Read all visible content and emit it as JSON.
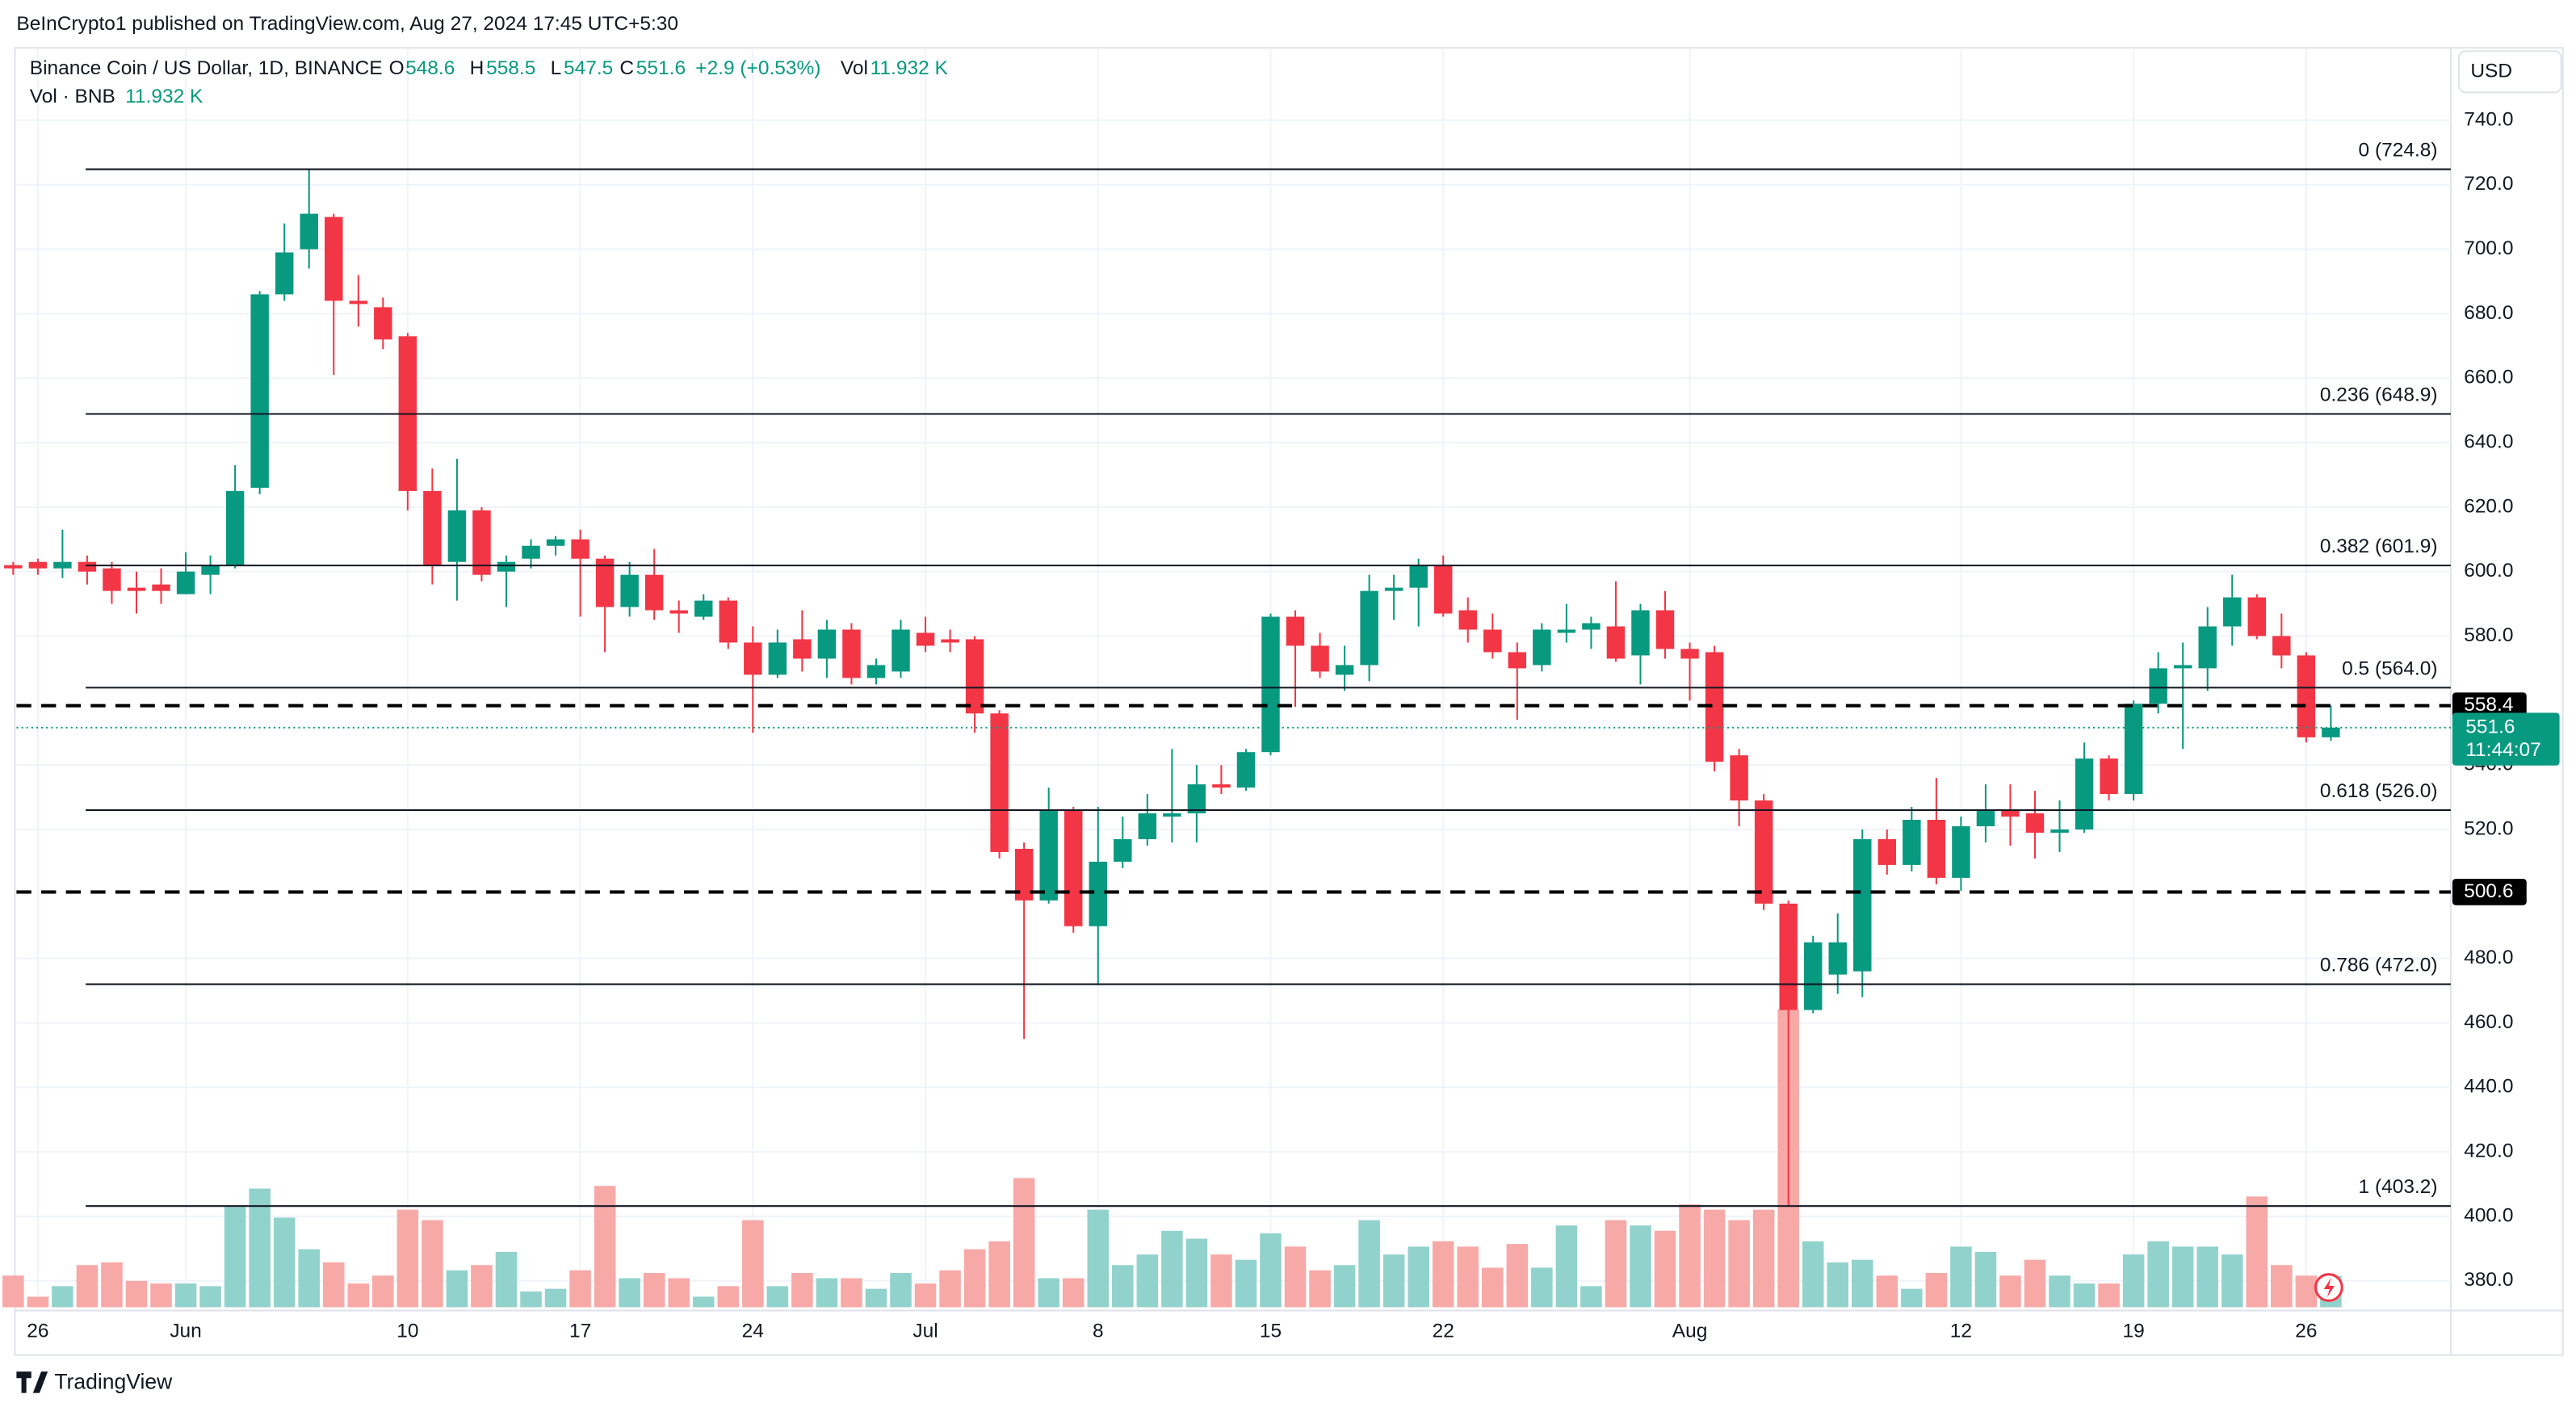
{
  "header": {
    "published": "BeInCrypto1 published on TradingView.com, Aug 27, 2024 17:45 UTC+5:30"
  },
  "footer": {
    "brand": "TradingView"
  },
  "chart_data": {
    "type": "candlestick",
    "currency": "USD",
    "legend": {
      "symbol": "Binance Coin / US Dollar, 1D, BINANCE",
      "keys": [
        "O",
        "H",
        "L",
        "C"
      ],
      "change": "+2.9 (+0.53%)",
      "vol_key": "Vol",
      "vol_title": "Vol · BNB",
      "volume_label": "11.932 K"
    },
    "categories": [
      "May 25",
      "May 26",
      "May 27",
      "May 28",
      "May 29",
      "May 30",
      "May 31",
      "Jun 1",
      "Jun 2",
      "Jun 3",
      "Jun 4",
      "Jun 5",
      "Jun 6",
      "Jun 7",
      "Jun 8",
      "Jun 9",
      "Jun 10",
      "Jun 11",
      "Jun 12",
      "Jun 13",
      "Jun 14",
      "Jun 15",
      "Jun 16",
      "Jun 17",
      "Jun 18",
      "Jun 19",
      "Jun 20",
      "Jun 21",
      "Jun 22",
      "Jun 23",
      "Jun 24",
      "Jun 25",
      "Jun 26",
      "Jun 27",
      "Jun 28",
      "Jun 29",
      "Jun 30",
      "Jul 1",
      "Jul 2",
      "Jul 3",
      "Jul 4",
      "Jul 5",
      "Jul 6",
      "Jul 7",
      "Jul 8",
      "Jul 9",
      "Jul 10",
      "Jul 11",
      "Jul 12",
      "Jul 13",
      "Jul 14",
      "Jul 15",
      "Jul 16",
      "Jul 17",
      "Jul 18",
      "Jul 19",
      "Jul 20",
      "Jul 21",
      "Jul 22",
      "Jul 23",
      "Jul 24",
      "Jul 25",
      "Jul 26",
      "Jul 27",
      "Jul 28",
      "Jul 29",
      "Jul 30",
      "Jul 31",
      "Aug 1",
      "Aug 2",
      "Aug 3",
      "Aug 4",
      "Aug 5",
      "Aug 6",
      "Aug 7",
      "Aug 8",
      "Aug 9",
      "Aug 10",
      "Aug 11",
      "Aug 12",
      "Aug 13",
      "Aug 14",
      "Aug 15",
      "Aug 16",
      "Aug 17",
      "Aug 18",
      "Aug 19",
      "Aug 20",
      "Aug 21",
      "Aug 22",
      "Aug 23",
      "Aug 24",
      "Aug 25",
      "Aug 26",
      "Aug 27"
    ],
    "open": [
      602,
      603,
      601,
      603,
      601,
      595,
      596,
      593,
      599,
      602,
      626,
      686,
      700,
      710,
      684,
      682,
      673,
      625,
      603,
      619,
      600,
      604,
      608,
      610,
      604,
      589,
      599,
      588,
      586,
      591,
      578,
      568,
      579,
      573,
      582,
      567,
      569,
      581,
      579,
      579,
      556,
      514,
      498,
      526,
      490,
      510,
      517,
      524,
      525,
      534,
      533,
      544,
      586,
      577,
      568,
      571,
      594,
      595,
      602,
      588,
      582,
      575,
      571,
      581,
      582,
      583,
      574,
      588,
      576,
      575,
      543,
      529,
      497,
      464,
      475,
      476,
      517,
      509,
      523,
      505,
      521,
      526,
      525,
      519,
      520,
      542,
      531,
      559,
      570,
      570,
      583,
      592,
      580,
      574,
      548.6
    ],
    "high": [
      603,
      604,
      613,
      605,
      603,
      600,
      601,
      606,
      605,
      633,
      687,
      708,
      724.8,
      711,
      692,
      685,
      674,
      632,
      635,
      620,
      605,
      610,
      611,
      613,
      605,
      603,
      607,
      591,
      593,
      592,
      583,
      582,
      588,
      585,
      584,
      573,
      585,
      586,
      582,
      580,
      557,
      516,
      533,
      527,
      527,
      524,
      531,
      545,
      540,
      540,
      545,
      587,
      588,
      581,
      577,
      599,
      599,
      604,
      605,
      592,
      587,
      578,
      584,
      590,
      586,
      597,
      590,
      594,
      578,
      577,
      545,
      531,
      498,
      487,
      494,
      520,
      520,
      527,
      536,
      524,
      534,
      534,
      532,
      529,
      547,
      543,
      560,
      575,
      578,
      589,
      599,
      593,
      587,
      575,
      558.5
    ],
    "low": [
      599,
      599,
      598,
      596,
      590,
      587,
      590,
      593,
      593,
      601,
      624,
      684,
      694,
      661,
      676,
      669,
      619,
      596,
      591,
      597,
      589,
      601,
      605,
      586,
      575,
      586,
      585,
      581,
      585,
      576,
      550,
      567,
      569,
      567,
      565,
      565,
      567,
      575,
      575,
      550,
      511,
      455,
      497,
      488,
      472,
      508,
      515,
      516,
      516,
      531,
      532,
      543,
      558,
      567,
      563,
      566,
      585,
      583,
      586,
      578,
      573,
      554,
      569,
      578,
      576,
      572,
      565,
      573,
      560,
      538,
      521,
      495,
      403.2,
      463,
      469,
      468,
      506,
      507,
      503,
      501,
      516,
      515,
      511,
      513,
      519,
      529,
      529,
      556,
      545,
      563,
      577,
      579,
      570,
      547,
      547.5
    ],
    "close": [
      601,
      601,
      603,
      600,
      594,
      594,
      594,
      600,
      602,
      625,
      686,
      699,
      711,
      684,
      683,
      672,
      625,
      602,
      619,
      599,
      603,
      608,
      610,
      604,
      589,
      599,
      588,
      587,
      591,
      578,
      568,
      578,
      573,
      582,
      567,
      571,
      582,
      577,
      578,
      556,
      513,
      498,
      526,
      490,
      510,
      517,
      525,
      525,
      534,
      533,
      544,
      586,
      577,
      569,
      571,
      594,
      595,
      602,
      587,
      582,
      575,
      570,
      582,
      582,
      584,
      573,
      588,
      576,
      573,
      541,
      529,
      497,
      464,
      485,
      485,
      517,
      509,
      523,
      505,
      521,
      526,
      524,
      519,
      520,
      542,
      531,
      559,
      570,
      571,
      583,
      592,
      580,
      574,
      548.6,
      551.6
    ],
    "volume": [
      12,
      4,
      8,
      16,
      17,
      10,
      9,
      9,
      8,
      38,
      45,
      34,
      22,
      17,
      9,
      12,
      37,
      33,
      14,
      16,
      21,
      6,
      7,
      14,
      46,
      11,
      13,
      11,
      4,
      8,
      33,
      8,
      13,
      11,
      11,
      7,
      13,
      9,
      14,
      22,
      25,
      49,
      11,
      11,
      37,
      16,
      20,
      29,
      26,
      20,
      18,
      28,
      23,
      14,
      16,
      33,
      20,
      23,
      25,
      23,
      15,
      24,
      15,
      31,
      8,
      33,
      31,
      29,
      39,
      37,
      33,
      37,
      113,
      25,
      17,
      18,
      12,
      7,
      13,
      23,
      21,
      12,
      18,
      12,
      9,
      9,
      20,
      25,
      23,
      23,
      20,
      42,
      16,
      12,
      11.932
    ],
    "up_color": "#089981",
    "down_color": "#f23645",
    "volume_up_color": "#92d2cc",
    "volume_down_color": "#f7a9a7",
    "ylim": [
      371.8,
      759.4
    ],
    "yticks": [
      {
        "value": 740,
        "label": "740.0"
      },
      {
        "value": 720,
        "label": "720.0"
      },
      {
        "value": 700,
        "label": "700.0"
      },
      {
        "value": 680,
        "label": "680.0"
      },
      {
        "value": 660,
        "label": "660.0"
      },
      {
        "value": 640,
        "label": "640.0"
      },
      {
        "value": 620,
        "label": "620.0"
      },
      {
        "value": 600,
        "label": "600.0"
      },
      {
        "value": 580,
        "label": "580.0"
      },
      {
        "value": 540,
        "label": "540.0"
      },
      {
        "value": 520,
        "label": "520.0"
      },
      {
        "value": 480,
        "label": "480.0"
      },
      {
        "value": 460,
        "label": "460.0"
      },
      {
        "value": 440,
        "label": "440.0"
      },
      {
        "value": 420,
        "label": "420.0"
      },
      {
        "value": 400,
        "label": "400.0"
      },
      {
        "value": 380,
        "label": "380.0"
      }
    ],
    "xticks": [
      {
        "value": "May 26",
        "label": "26"
      },
      {
        "value": "Jun 1",
        "label": "Jun"
      },
      {
        "value": "Jun 10",
        "label": "10"
      },
      {
        "value": "Jun 17",
        "label": "17"
      },
      {
        "value": "Jun 24",
        "label": "24"
      },
      {
        "value": "Jul 1",
        "label": "Jul"
      },
      {
        "value": "Jul 8",
        "label": "8"
      },
      {
        "value": "Jul 15",
        "label": "15"
      },
      {
        "value": "Jul 22",
        "label": "22"
      },
      {
        "value": "Aug 1",
        "label": "Aug"
      },
      {
        "value": "Aug 12",
        "label": "12"
      },
      {
        "value": "Aug 19",
        "label": "19"
      },
      {
        "value": "Aug 26",
        "label": "26"
      }
    ],
    "grid": true,
    "fib_levels": [
      {
        "price": 724.8,
        "label": "0 (724.8)"
      },
      {
        "price": 648.9,
        "label": "0.236 (648.9)"
      },
      {
        "price": 601.9,
        "label": "0.382 (601.9)"
      },
      {
        "price": 564.0,
        "label": "0.5 (564.0)"
      },
      {
        "price": 526.0,
        "label": "0.618 (526.0)"
      },
      {
        "price": 472.0,
        "label": "0.786 (472.0)"
      },
      {
        "price": 403.2,
        "label": "1 (403.2)"
      }
    ],
    "levels": [
      558.4,
      500.6
    ],
    "countdown": "11:44:07"
  }
}
